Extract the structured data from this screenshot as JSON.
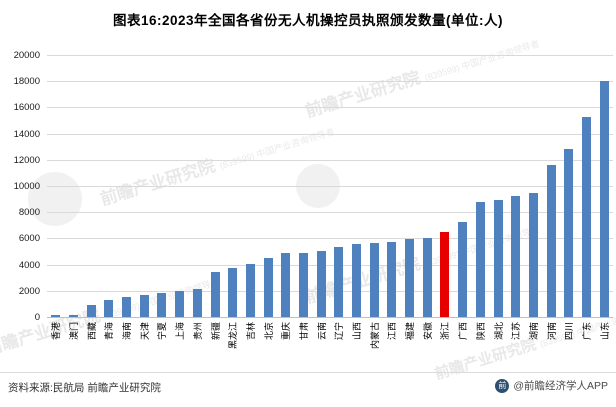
{
  "title": "图表16:2023年全国各省份无人机操控员执照颁发数量(单位:人)",
  "chart_data": {
    "type": "bar",
    "title": "图表16:2023年全国各省份无人机操控员执照颁发数量(单位:人)",
    "categories": [
      "香港",
      "澳门",
      "西藏",
      "青海",
      "海南",
      "天津",
      "宁夏",
      "上海",
      "贵州",
      "新疆",
      "黑龙江",
      "吉林",
      "北京",
      "重庆",
      "甘肃",
      "云南",
      "辽宁",
      "山西",
      "内蒙古",
      "江西",
      "福建",
      "安徽",
      "浙江",
      "广西",
      "陕西",
      "湖北",
      "江苏",
      "湖南",
      "河南",
      "四川",
      "广东",
      "山东"
    ],
    "values": [
      130,
      180,
      950,
      1300,
      1500,
      1650,
      1800,
      1950,
      2150,
      3450,
      3770,
      4050,
      4500,
      4850,
      4900,
      5050,
      5350,
      5600,
      5670,
      5700,
      5950,
      6000,
      6500,
      7280,
      8800,
      8930,
      9270,
      9500,
      11640,
      12800,
      15250,
      17980
    ],
    "highlight_category": "浙江",
    "highlight_index": 22,
    "bar_color": "#4e81bd",
    "highlight_color": "#e60000",
    "xlabel": "",
    "ylabel": "",
    "ylim": [
      0,
      20000
    ],
    "ytick_step": 2000,
    "y_ticks": [
      "0",
      "2000",
      "4000",
      "6000",
      "8000",
      "10000",
      "12000",
      "14000",
      "16000",
      "18000",
      "20000"
    ],
    "grid": true,
    "legend": "none"
  },
  "watermark": {
    "text": "前瞻产业研究院",
    "code": "(839599)",
    "subtext": "中国产业咨询领导者"
  },
  "footer": {
    "source": "资料来源:民航局 前瞻产业研究院",
    "credit": "@前瞻经济学人APP",
    "logo_glyph": "前"
  }
}
